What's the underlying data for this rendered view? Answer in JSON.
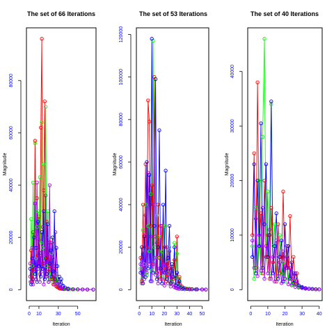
{
  "chart_data": [
    {
      "type": "line",
      "title": "The set of 66 Iterations",
      "xlabel": "Iteration",
      "ylabel": "Magnitude",
      "xlim": [
        0,
        66
      ],
      "ylim": [
        0,
        96000
      ],
      "xticks": [
        0,
        10,
        30,
        50
      ],
      "xtick_labels": [
        "0",
        "10",
        "30",
        "50"
      ],
      "yticks": [
        0,
        20000,
        40000,
        60000,
        80000
      ],
      "ytick_labels": [
        "0",
        "20000",
        "40000",
        "60000",
        "80000"
      ],
      "grid": false,
      "tick_color": "#0000ff",
      "series": [
        {
          "color": "#00ff00",
          "x": [
            1,
            2,
            3,
            4,
            5,
            6,
            7,
            8,
            9,
            10,
            11,
            12,
            13,
            14,
            15,
            16,
            17,
            18,
            19,
            20,
            21,
            22,
            23,
            24,
            25,
            26,
            27,
            28,
            29,
            30,
            31,
            32,
            33,
            35,
            38,
            42,
            46,
            50,
            55,
            60,
            66
          ],
          "y": [
            3000,
            27000,
            9000,
            41000,
            6000,
            56000,
            12000,
            24000,
            30000,
            8000,
            43000,
            18000,
            64000,
            16000,
            48000,
            12000,
            70000,
            9000,
            30000,
            6000,
            20000,
            4000,
            14000,
            3000,
            9000,
            2500,
            6000,
            1800,
            3500,
            1200,
            1600,
            800,
            600,
            400,
            250,
            150,
            120,
            100,
            80,
            60,
            50
          ]
        },
        {
          "color": "#ff0000",
          "x": [
            1,
            2,
            3,
            4,
            5,
            6,
            7,
            8,
            9,
            10,
            11,
            12,
            13,
            14,
            15,
            16,
            17,
            18,
            19,
            20,
            21,
            22,
            23,
            24,
            25,
            26,
            27,
            28,
            29,
            30,
            31,
            32,
            34,
            36,
            40,
            45,
            50,
            55,
            60,
            66
          ],
          "y": [
            5000,
            15000,
            3000,
            22000,
            8000,
            57000,
            4000,
            35000,
            13000,
            28000,
            6000,
            62000,
            96000,
            10000,
            38000,
            72000,
            5000,
            26000,
            12000,
            7000,
            18000,
            9000,
            4000,
            12000,
            2000,
            8000,
            3500,
            1200,
            1000,
            800,
            500,
            400,
            300,
            200,
            150,
            120,
            100,
            80,
            60,
            50
          ]
        },
        {
          "color": "#0000ff",
          "x": [
            1,
            2,
            3,
            4,
            5,
            6,
            7,
            8,
            9,
            10,
            11,
            12,
            13,
            14,
            15,
            16,
            17,
            18,
            19,
            20,
            21,
            22,
            23,
            24,
            25,
            26,
            27,
            28,
            29,
            30,
            31,
            32,
            33,
            35,
            37,
            40,
            45,
            50,
            55,
            60,
            66
          ],
          "y": [
            8000,
            2000,
            12000,
            4000,
            20000,
            6000,
            16000,
            3000,
            26000,
            9000,
            14000,
            5000,
            22000,
            8000,
            30000,
            4000,
            12000,
            6000,
            25000,
            3000,
            10000,
            15000,
            5000,
            20000,
            7000,
            30000,
            4000,
            16000,
            9000,
            3000,
            5000,
            2000,
            4000,
            1500,
            800,
            400,
            200,
            150,
            100,
            80,
            60
          ]
        },
        {
          "color": "#a000f0",
          "x": [
            1,
            2,
            3,
            4,
            5,
            6,
            7,
            8,
            9,
            10,
            11,
            12,
            13,
            14,
            15,
            16,
            17,
            18,
            19,
            20,
            21,
            22,
            23,
            24,
            25,
            26,
            27,
            28,
            29,
            30,
            31,
            32,
            33,
            34,
            36,
            40,
            45,
            50,
            55,
            60,
            66
          ],
          "y": [
            10000,
            3000,
            16000,
            2000,
            9000,
            33000,
            4000,
            41000,
            8000,
            19000,
            3000,
            13000,
            7000,
            24000,
            2000,
            10000,
            36000,
            5000,
            14000,
            3000,
            40000,
            8000,
            18000,
            4000,
            9000,
            2000,
            22000,
            6000,
            2500,
            3000,
            1500,
            1000,
            700,
            500,
            300,
            200,
            150,
            100,
            80,
            60,
            50
          ]
        }
      ]
    },
    {
      "type": "line",
      "title": "The set of 53 Iterations",
      "xlabel": "Iteration",
      "ylabel": "Magnitude",
      "xlim": [
        0,
        53
      ],
      "ylim": [
        0,
        118000
      ],
      "xticks": [
        0,
        10,
        20,
        30,
        40,
        50
      ],
      "xtick_labels": [
        "0",
        "10",
        "20",
        "30",
        "40",
        "50"
      ],
      "yticks": [
        0,
        20000,
        40000,
        60000,
        80000,
        100000,
        120000
      ],
      "ytick_labels": [
        "0",
        "20000",
        "40000",
        "60000",
        "80000",
        "100000",
        "120000"
      ],
      "grid": false,
      "tick_color": "#0000ff",
      "series": [
        {
          "color": "#00ff00",
          "x": [
            1,
            2,
            3,
            4,
            5,
            6,
            7,
            8,
            9,
            10,
            11,
            12,
            13,
            14,
            15,
            16,
            17,
            18,
            19,
            20,
            21,
            22,
            23,
            24,
            25,
            26,
            27,
            28,
            29,
            30,
            31,
            32,
            33,
            35,
            38,
            42,
            46,
            50,
            53
          ],
          "y": [
            10000,
            5000,
            28000,
            12000,
            40000,
            7000,
            30000,
            18000,
            45000,
            9000,
            117000,
            20000,
            8000,
            35000,
            15000,
            25000,
            6000,
            18000,
            10000,
            30000,
            5000,
            14000,
            8000,
            20000,
            4000,
            12000,
            3000,
            22000,
            6000,
            17000,
            2000,
            5000,
            1500,
            800,
            500,
            300,
            200,
            150,
            100
          ]
        },
        {
          "color": "#ff0000",
          "x": [
            1,
            2,
            3,
            4,
            5,
            6,
            7,
            8,
            9,
            10,
            11,
            12,
            13,
            14,
            15,
            16,
            17,
            18,
            19,
            20,
            21,
            22,
            23,
            24,
            25,
            26,
            27,
            28,
            29,
            30,
            31,
            32,
            34,
            36,
            40,
            45,
            50,
            53
          ],
          "y": [
            15000,
            4000,
            40000,
            10000,
            59000,
            20000,
            89000,
            79000,
            30000,
            49000,
            12000,
            100000,
            25000,
            8000,
            40000,
            15000,
            5000,
            30000,
            10000,
            20000,
            4000,
            12000,
            7000,
            18000,
            3000,
            10000,
            5000,
            14000,
            2000,
            25000,
            3000,
            6000,
            1500,
            800,
            400,
            200,
            150,
            100
          ]
        },
        {
          "color": "#0000ff",
          "x": [
            1,
            2,
            3,
            4,
            5,
            6,
            7,
            8,
            9,
            10,
            11,
            12,
            13,
            14,
            15,
            16,
            17,
            18,
            19,
            20,
            21,
            22,
            23,
            24,
            25,
            26,
            27,
            28,
            29,
            30,
            31,
            32,
            33,
            35,
            38,
            42,
            46,
            50,
            53
          ],
          "y": [
            8000,
            20000,
            3000,
            25000,
            6000,
            60000,
            10000,
            54000,
            4000,
            118000,
            8000,
            30000,
            99000,
            5000,
            20000,
            75000,
            10000,
            3000,
            40000,
            8000,
            56000,
            5000,
            15000,
            30000,
            3000,
            12000,
            6000,
            20000,
            2000,
            8000,
            1500,
            4000,
            1000,
            600,
            300,
            200,
            150,
            100,
            80
          ]
        },
        {
          "color": "#a000f0",
          "x": [
            1,
            2,
            3,
            4,
            5,
            6,
            7,
            8,
            9,
            10,
            11,
            12,
            13,
            14,
            15,
            16,
            17,
            18,
            19,
            20,
            21,
            22,
            23,
            24,
            25,
            26,
            27,
            28,
            29,
            30,
            31,
            32,
            34,
            36,
            40,
            45,
            50,
            53
          ],
          "y": [
            12000,
            3000,
            18000,
            5000,
            35000,
            8000,
            55000,
            12000,
            25000,
            4000,
            40000,
            15000,
            7000,
            22000,
            3000,
            10000,
            30000,
            5000,
            12000,
            2000,
            8000,
            20000,
            3000,
            10000,
            1500,
            6000,
            2500,
            1200,
            900,
            700,
            500,
            400,
            300,
            200,
            150,
            100,
            80,
            60
          ]
        }
      ]
    },
    {
      "type": "line",
      "title": "The set of 40 Iterations",
      "xlabel": "Iteration",
      "ylabel": "Magnitude",
      "xlim": [
        0,
        40
      ],
      "ylim": [
        0,
        46000
      ],
      "xticks": [
        0,
        10,
        20,
        30,
        40
      ],
      "xtick_labels": [
        "0",
        "10",
        "20",
        "30",
        "40"
      ],
      "yticks": [
        0,
        10000,
        20000,
        30000,
        40000
      ],
      "ytick_labels": [
        "0",
        "10000",
        "20000",
        "30000",
        "40000"
      ],
      "grid": false,
      "tick_color": "#0000ff",
      "series": [
        {
          "color": "#00ff00",
          "x": [
            1,
            2,
            3,
            4,
            5,
            6,
            7,
            8,
            9,
            10,
            11,
            12,
            13,
            14,
            15,
            16,
            17,
            18,
            19,
            20,
            21,
            22,
            23,
            24,
            25,
            26,
            28,
            30,
            32,
            34,
            36,
            38,
            40
          ],
          "y": [
            8000,
            2000,
            15000,
            4000,
            20000,
            3000,
            28000,
            46000,
            6000,
            18000,
            3000,
            34000,
            8000,
            12000,
            2000,
            6000,
            10000,
            3000,
            5000,
            1500,
            8000,
            2000,
            4000,
            1000,
            1500,
            800,
            500,
            300,
            200,
            150,
            100,
            80,
            50
          ]
        },
        {
          "color": "#ff0000",
          "x": [
            1,
            2,
            3,
            4,
            5,
            6,
            7,
            8,
            9,
            10,
            11,
            12,
            13,
            14,
            15,
            16,
            17,
            18,
            19,
            20,
            21,
            22,
            23,
            24,
            25,
            26,
            27,
            28,
            30,
            32,
            34,
            36,
            38,
            40
          ],
          "y": [
            10000,
            25000,
            4000,
            38000,
            8000,
            14000,
            3000,
            20000,
            6000,
            10000,
            2000,
            15000,
            5000,
            8000,
            1500,
            12000,
            3000,
            6000,
            18000,
            2000,
            8000,
            4000,
            13500,
            2000,
            6000,
            1200,
            3000,
            800,
            400,
            200,
            150,
            100,
            80,
            50
          ]
        },
        {
          "color": "#0000ff",
          "x": [
            1,
            2,
            3,
            4,
            5,
            6,
            7,
            8,
            9,
            10,
            11,
            12,
            13,
            14,
            15,
            16,
            17,
            18,
            19,
            20,
            21,
            22,
            23,
            24,
            25,
            26,
            28,
            30,
            32,
            34,
            36,
            38,
            40
          ],
          "y": [
            6000,
            23000,
            3000,
            20000,
            8000,
            30500,
            4000,
            12000,
            23000,
            6000,
            10000,
            34500,
            3000,
            8000,
            14000,
            2000,
            6000,
            9000,
            1500,
            12000,
            4000,
            8000,
            2000,
            5000,
            1200,
            3000,
            800,
            500,
            300,
            200,
            150,
            100,
            60
          ]
        },
        {
          "color": "#a000f0",
          "x": [
            1,
            2,
            3,
            4,
            5,
            6,
            7,
            8,
            9,
            10,
            11,
            12,
            13,
            14,
            15,
            16,
            17,
            18,
            19,
            20,
            21,
            22,
            23,
            24,
            25,
            26,
            27,
            28,
            30,
            32,
            34,
            36,
            38,
            40
          ],
          "y": [
            9000,
            4000,
            13000,
            2500,
            10000,
            3500,
            15000,
            2000,
            8000,
            3000,
            11000,
            2000,
            6000,
            1500,
            9000,
            2500,
            5000,
            1200,
            7000,
            2000,
            6000,
            1000,
            4000,
            800,
            3000,
            500,
            1500,
            400,
            300,
            200,
            150,
            100,
            80,
            50
          ]
        }
      ]
    }
  ]
}
